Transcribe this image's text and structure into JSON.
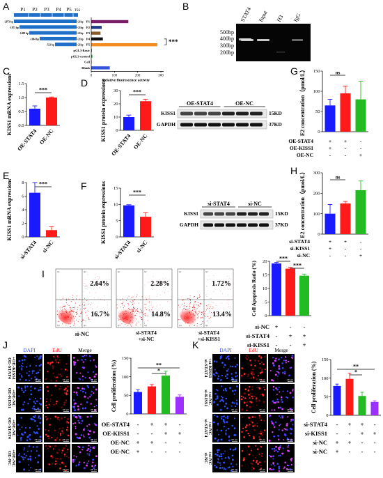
{
  "panels": {
    "A": {
      "letter": "A",
      "segments": [
        "P1",
        "P2",
        "P3",
        "P4",
        "P5",
        "TSS"
      ],
      "constructs": [
        {
          "start": "-2073 bp",
          "end": "+21bp",
          "name": "P1",
          "value": 160
        },
        {
          "start": "-1873 bp",
          "end": "+21bp",
          "name": "P2",
          "value": 45
        },
        {
          "start": "-1498 bp",
          "end": "+21bp",
          "name": "P3",
          "value": 40
        },
        {
          "start": "-1004 bp",
          "end": "+21bp",
          "name": "P4",
          "value": 50
        },
        {
          "start": "-523 bp",
          "end": "+21bp",
          "name": "P5",
          "value": 285
        },
        {
          "start": "",
          "end": "",
          "name": "pGL3-Basic",
          "value": 3
        },
        {
          "start": "",
          "end": "",
          "name": "pGL3-control",
          "value": 5
        },
        {
          "start": "",
          "end": "",
          "name": "Cell",
          "value": 2
        },
        {
          "start": "",
          "end": "",
          "name": "Blank",
          "value": 80
        }
      ],
      "bar_colors": [
        "#7b1e6a",
        "#1f3c88",
        "#8b5a2b",
        "#111111",
        "#f28c1e",
        "#b040c0",
        "#3aa040",
        "#b0b0b0",
        "#3355dd"
      ],
      "xticks": [
        "0",
        "100",
        "200",
        "300"
      ],
      "xmax": 300,
      "xlabel": "Relative fluorescence activity",
      "sig": "***"
    },
    "B": {
      "letter": "B",
      "lanes": [
        "STAT4",
        "Input",
        "H3",
        "IgG"
      ],
      "markers": [
        "500bp",
        "400bp",
        "300bp",
        "200bp"
      ]
    },
    "C": {
      "letter": "C",
      "ylabel": "KISS1 mRNA expressions",
      "groups": [
        "OE-STAT4",
        "OE-NC"
      ],
      "values": [
        0.6,
        1.0
      ],
      "errors": [
        0.1,
        0.02
      ],
      "colors": [
        "#1a1aff",
        "#ff1a1a"
      ],
      "ylim": [
        0,
        1.5
      ],
      "yticks": [
        "0.0",
        "0.5",
        "1.0",
        "1.5"
      ],
      "sig": "***"
    },
    "D": {
      "letter": "D",
      "ylabel": "KISS1 protein expressions",
      "groups": [
        "OE-STAT4",
        "OE-NC"
      ],
      "values": [
        10,
        22
      ],
      "errors": [
        1.5,
        1.5
      ],
      "colors": [
        "#1a1aff",
        "#ff1a1a"
      ],
      "ylim": [
        0,
        30
      ],
      "yticks": [
        "0",
        "10",
        "20",
        "30"
      ],
      "sig": "***",
      "blot": {
        "headers": [
          "OE-STAT4",
          "OE-NC"
        ],
        "rows": [
          "KISS1",
          "GAPDH"
        ],
        "sizes": [
          "15KD",
          "37KD"
        ]
      }
    },
    "E": {
      "letter": "E",
      "ylabel": "KISS1 mRNA expressions",
      "groups": [
        "si-STAT4",
        "si-NC"
      ],
      "values": [
        6.5,
        1.0
      ],
      "errors": [
        1.5,
        0.5
      ],
      "colors": [
        "#1a1aff",
        "#ff1a1a"
      ],
      "ylim": [
        0,
        8
      ],
      "yticks": [
        "0",
        "2",
        "4",
        "6",
        "8"
      ],
      "sig": "***"
    },
    "F": {
      "letter": "F",
      "ylabel": "KISS1 protein expressions",
      "groups": [
        "si-STAT4",
        "si-NC"
      ],
      "values": [
        9.7,
        6.2
      ],
      "errors": [
        0.2,
        1.3
      ],
      "colors": [
        "#1a1aff",
        "#ff1a1a"
      ],
      "ylim": [
        0,
        15
      ],
      "yticks": [
        "0",
        "5",
        "10",
        "15"
      ],
      "sig": "***",
      "blot": {
        "headers": [
          "si-STAT4",
          "si-NC"
        ],
        "rows": [
          "KISS1",
          "GAPDH"
        ],
        "sizes": [
          "15KD",
          "37KD"
        ]
      }
    },
    "G": {
      "letter": "G",
      "ylabel": "E2 concentration（pmol/L）",
      "values": [
        65,
        95,
        80
      ],
      "errors": [
        15,
        18,
        45
      ],
      "colors": [
        "#1a1aff",
        "#ff1a1a",
        "#22bb22"
      ],
      "ylim": [
        0,
        150
      ],
      "yticks": [
        "0",
        "50",
        "100",
        "150"
      ],
      "sig": "ns",
      "rows": [
        {
          "label": "OE-STAT4",
          "marks": [
            "+",
            "+",
            "-"
          ]
        },
        {
          "label": "OE-KISS1",
          "marks": [
            "+",
            "-",
            "-"
          ]
        },
        {
          "label": "OE-NC",
          "marks": [
            "-",
            "-",
            "+"
          ]
        }
      ]
    },
    "H": {
      "letter": "H",
      "ylabel": "E2 concentration（pmol/L）",
      "values": [
        100,
        150,
        215
      ],
      "errors": [
        45,
        10,
        45
      ],
      "colors": [
        "#1a1aff",
        "#ff1a1a",
        "#22bb22"
      ],
      "ylim": [
        0,
        300
      ],
      "yticks": [
        "0",
        "100",
        "200",
        "300"
      ],
      "sig": "ns",
      "rows": [
        {
          "label": "si-STAT4",
          "marks": [
            "+",
            "+",
            "-"
          ]
        },
        {
          "label": "si-KISS1",
          "marks": [
            "+",
            "-",
            "-"
          ]
        },
        {
          "label": "si-NC",
          "marks": [
            "-",
            "-",
            "+"
          ]
        }
      ]
    },
    "I": {
      "letter": "I",
      "plots": [
        {
          "ul": "2.64%",
          "lr": "16.7%",
          "label": "si-NC"
        },
        {
          "ul": "2.28%",
          "lr": "14.8%",
          "label": "si-STAT4 +si-NC"
        },
        {
          "ul": "1.72%",
          "lr": "13.4%",
          "label": "si-STAT4 +si-KISS1"
        }
      ],
      "quadrants": [
        "Q1",
        "Q2",
        "Q3",
        "Q4"
      ],
      "bar": {
        "ylabel": "Cell Apoptosis Ratio (%)",
        "values": [
          19.2,
          17.3,
          14.7
        ],
        "errors": [
          0.4,
          0.5,
          0.6
        ],
        "colors": [
          "#1a1aff",
          "#ff1a1a",
          "#22bb22"
        ],
        "ylim": [
          0,
          20
        ],
        "yticks": [
          "0",
          "5",
          "10",
          "15",
          "20"
        ],
        "sigs": [
          "***",
          "***"
        ],
        "rows": [
          {
            "label": "si-NC",
            "marks": [
              "+",
              "-",
              "-"
            ]
          },
          {
            "label": "si-STAT4",
            "marks": [
              "-",
              "+",
              "+"
            ]
          },
          {
            "label": "si-KISS1",
            "marks": [
              "-",
              "-",
              "+"
            ]
          }
        ]
      }
    },
    "J": {
      "letter": "J",
      "channels": [
        "DAPI",
        "EdU",
        "Merge"
      ],
      "row_labels": [
        "OE-STAT4 +OE-KISS1",
        "OE-KISS1 +OE-NC",
        "OE-STAT4 +OE-NC",
        "OE-NC +OE-NC"
      ],
      "scale": "100 μm",
      "bar": {
        "ylabel": "Cell proliferation (%)",
        "values": [
          59,
          74,
          103,
          46
        ],
        "errors": [
          6,
          5,
          12,
          5
        ],
        "colors": [
          "#1a1aff",
          "#ff1a1a",
          "#22bb22",
          "#9b30ff"
        ],
        "ylim": [
          0,
          150
        ],
        "yticks": [
          "0",
          "50",
          "100",
          "150"
        ],
        "sigs": [
          "*",
          "**"
        ],
        "rows": [
          {
            "label": "OE-STAT4",
            "marks": [
              "-",
              "+",
              "+",
              "-"
            ]
          },
          {
            "label": "OE-KISS1",
            "marks": [
              "-",
              "-",
              "+",
              "+"
            ]
          },
          {
            "label": "OE-NC",
            "marks": [
              "+",
              "+",
              "-",
              "-"
            ]
          },
          {
            "label": "OE-NC",
            "marks": [
              "+",
              "-",
              "-",
              "-"
            ]
          }
        ]
      }
    },
    "K": {
      "letter": "K",
      "channels": [
        "DAPI",
        "EdU",
        "Merge"
      ],
      "row_labels": [
        "si-STAT4 +si-KISS1",
        "si-KISS1 +si-NC",
        "si-STAT4 +si-NC",
        "si-NC +si-NC"
      ],
      "scale": "100 μm",
      "bar": {
        "ylabel": "Cell proliferation (%)",
        "values": [
          79,
          98,
          52,
          36
        ],
        "errors": [
          5,
          15,
          10,
          3
        ],
        "colors": [
          "#1a1aff",
          "#ff1a1a",
          "#22bb22",
          "#9b30ff"
        ],
        "ylim": [
          0,
          150
        ],
        "yticks": [
          "0",
          "50",
          "100",
          "150"
        ],
        "sigs": [
          "*",
          "**"
        ],
        "rows": [
          {
            "label": "si-STAT4",
            "marks": [
              "-",
              "+",
              "+",
              "-"
            ]
          },
          {
            "label": "si-KISS1",
            "marks": [
              "-",
              "-",
              "+",
              "+"
            ]
          },
          {
            "label": "si-NC",
            "marks": [
              "+",
              "+",
              "-",
              "-"
            ]
          },
          {
            "label": "si-NC",
            "marks": [
              "+",
              "-",
              "-",
              "-"
            ]
          }
        ]
      }
    }
  }
}
